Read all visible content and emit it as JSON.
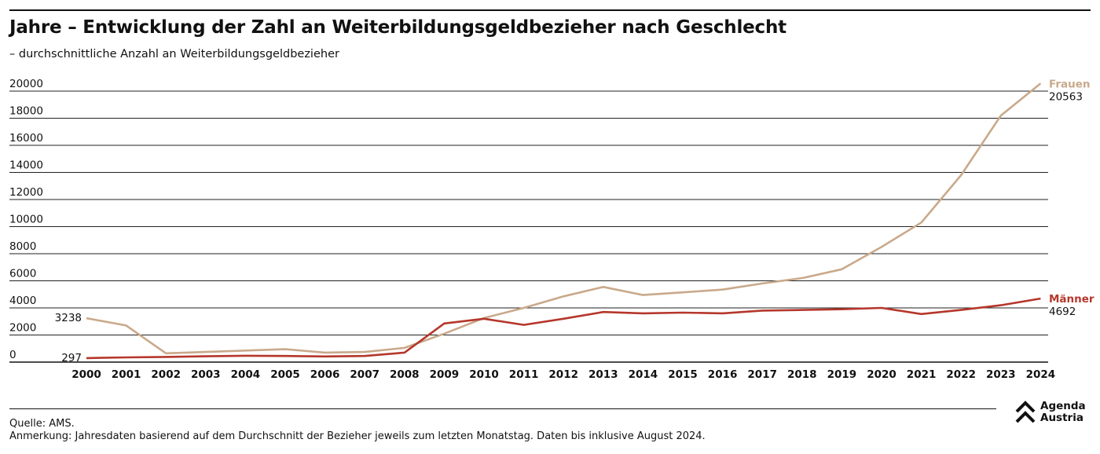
{
  "header": {
    "title": "Jahre – Entwicklung der Zahl an Weiterbildungsgeldbezieher nach Geschlecht",
    "subtitle": "– durchschnittliche Anzahl an Weiterbildungsgeldbezieher"
  },
  "footer": {
    "source": "Quelle: AMS.",
    "note": "Anmerkung: Jahresdaten basierend auf dem Durchschnitt der Bezieher jeweils zum letzten Monatstag. Daten bis inklusive August 2024."
  },
  "logo": {
    "line1": "Agenda",
    "line2": "Austria",
    "icon": "agenda-austria-chevron-logo"
  },
  "chart_data": {
    "type": "line",
    "title": "Jahre – Entwicklung der Zahl an Weiterbildungsgeldbezieher nach Geschlecht",
    "subtitle": "– durchschnittliche Anzahl an Weiterbildungsgeldbezieher",
    "xlabel": "",
    "ylabel": "",
    "ylim": [
      0,
      20000
    ],
    "yticks": [
      0,
      2000,
      4000,
      6000,
      8000,
      10000,
      12000,
      14000,
      16000,
      18000,
      20000
    ],
    "grid": true,
    "categories": [
      "2000",
      "2001",
      "2002",
      "2003",
      "2004",
      "2005",
      "2006",
      "2007",
      "2008",
      "2009",
      "2010",
      "2011",
      "2012",
      "2013",
      "2014",
      "2015",
      "2016",
      "2017",
      "2018",
      "2019",
      "2020",
      "2021",
      "2022",
      "2023",
      "2024"
    ],
    "series": [
      {
        "name": "Frauen",
        "color": "#c9a98b",
        "values": [
          3238,
          2700,
          650,
          750,
          850,
          950,
          700,
          750,
          1050,
          2100,
          3250,
          4000,
          4850,
          5550,
          4950,
          5150,
          5350,
          5800,
          6200,
          6850,
          8500,
          10300,
          13800,
          18200,
          20563
        ],
        "start_label": "3238",
        "end_label": "20563"
      },
      {
        "name": "Männer",
        "color": "#b5372b",
        "values": [
          297,
          350,
          380,
          430,
          470,
          450,
          420,
          450,
          700,
          2850,
          3200,
          2750,
          3200,
          3700,
          3600,
          3650,
          3600,
          3800,
          3850,
          3900,
          4000,
          3550,
          3850,
          4200,
          4692
        ],
        "start_label": "297",
        "end_label": "4692"
      }
    ],
    "legend": "inline-right"
  }
}
